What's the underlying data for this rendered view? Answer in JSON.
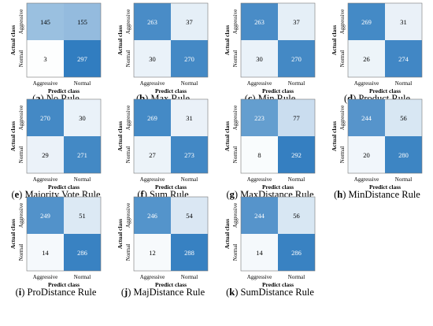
{
  "colors": {
    "low": "#ffffff",
    "high": "#2f7cbf",
    "border": "#777777",
    "dark_text": "#000000",
    "light_text": "#ffffff"
  },
  "chart_data": [
    {
      "type": "heatmap",
      "label": "a",
      "title": "No Rule",
      "xlabel": "Predict class",
      "ylabel": "Actual class",
      "x_categories": [
        "Aggressive",
        "Normal"
      ],
      "y_categories": [
        "Aggressive",
        "Normal"
      ],
      "values": [
        [
          145,
          155
        ],
        [
          3,
          297
        ]
      ]
    },
    {
      "type": "heatmap",
      "label": "b",
      "title": "Max Rule",
      "xlabel": "Predict class",
      "ylabel": "Actual class",
      "x_categories": [
        "Aggressive",
        "Normal"
      ],
      "y_categories": [
        "Aggressive",
        "Normal"
      ],
      "values": [
        [
          263,
          37
        ],
        [
          30,
          270
        ]
      ]
    },
    {
      "type": "heatmap",
      "label": "c",
      "title": "Min Rule",
      "xlabel": "Predict class",
      "ylabel": "Actual class",
      "x_categories": [
        "Aggressive",
        "Normal"
      ],
      "y_categories": [
        "Aggressive",
        "Normal"
      ],
      "values": [
        [
          263,
          37
        ],
        [
          30,
          270
        ]
      ]
    },
    {
      "type": "heatmap",
      "label": "d",
      "title": "Product Rule",
      "xlabel": "Predict class",
      "ylabel": "Actual class",
      "x_categories": [
        "Aggressive",
        "Normal"
      ],
      "y_categories": [
        "Aggressive",
        "Normal"
      ],
      "values": [
        [
          269,
          31
        ],
        [
          26,
          274
        ]
      ]
    },
    {
      "type": "heatmap",
      "label": "e",
      "title": "Majority Vote Rule",
      "xlabel": "Predict class",
      "ylabel": "Actual class",
      "x_categories": [
        "Aggressive",
        "Normal"
      ],
      "y_categories": [
        "Aggressive",
        "Normal"
      ],
      "values": [
        [
          270,
          30
        ],
        [
          29,
          271
        ]
      ]
    },
    {
      "type": "heatmap",
      "label": "f",
      "title": "Sum Rule",
      "xlabel": "Predict class",
      "ylabel": "Actual class",
      "x_categories": [
        "Aggressive",
        "Normal"
      ],
      "y_categories": [
        "Aggressive",
        "Normal"
      ],
      "values": [
        [
          269,
          31
        ],
        [
          27,
          273
        ]
      ]
    },
    {
      "type": "heatmap",
      "label": "g",
      "title": "MaxDistance Rule",
      "xlabel": "Predict class",
      "ylabel": "Actual class",
      "x_categories": [
        "Aggressive",
        "Normal"
      ],
      "y_categories": [
        "Aggressive",
        "Normal"
      ],
      "values": [
        [
          223,
          77
        ],
        [
          8,
          292
        ]
      ]
    },
    {
      "type": "heatmap",
      "label": "h",
      "title": "MinDistance Rule",
      "xlabel": "Predict class",
      "ylabel": "Actual class",
      "x_categories": [
        "Aggressive",
        "Normal"
      ],
      "y_categories": [
        "Aggressive",
        "Normal"
      ],
      "values": [
        [
          244,
          56
        ],
        [
          20,
          280
        ]
      ]
    },
    {
      "type": "heatmap",
      "label": "i",
      "title": "ProDistance Rule",
      "xlabel": "Predict class",
      "ylabel": "Actual class",
      "x_categories": [
        "Aggressive",
        "Normal"
      ],
      "y_categories": [
        "Aggressive",
        "Normal"
      ],
      "values": [
        [
          249,
          51
        ],
        [
          14,
          286
        ]
      ]
    },
    {
      "type": "heatmap",
      "label": "j",
      "title": "MajDistance Rule",
      "xlabel": "Predict class",
      "ylabel": "Actual class",
      "x_categories": [
        "Aggressive",
        "Normal"
      ],
      "y_categories": [
        "Aggressive",
        "Normal"
      ],
      "values": [
        [
          246,
          54
        ],
        [
          12,
          288
        ]
      ]
    },
    {
      "type": "heatmap",
      "label": "k",
      "title": "SumDistance Rule",
      "xlabel": "Predict class",
      "ylabel": "Actual class",
      "x_categories": [
        "Aggressive",
        "Normal"
      ],
      "y_categories": [
        "Aggressive",
        "Normal"
      ],
      "values": [
        [
          244,
          56
        ],
        [
          14,
          286
        ]
      ]
    }
  ]
}
